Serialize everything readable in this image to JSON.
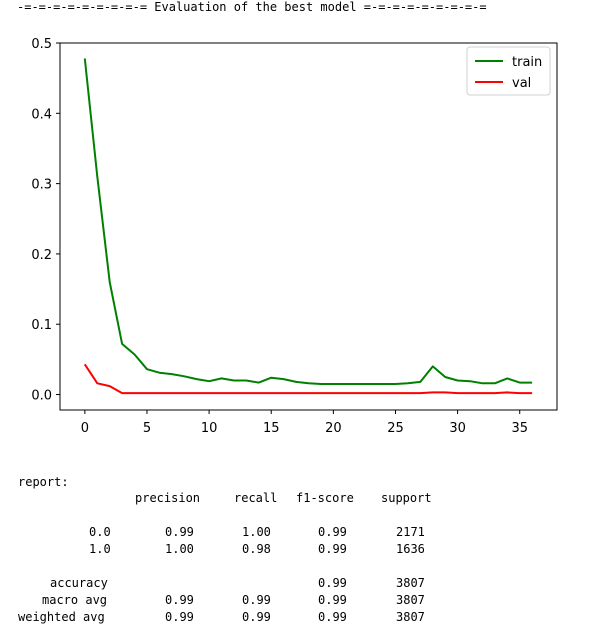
{
  "header": {
    "text": "-=-=-=-=-=-=-=-=-= Evaluation of the best model =-=-=-=-=-=-=-=-="
  },
  "chart_data": {
    "type": "line",
    "xlabel": "",
    "ylabel": "",
    "xlim": [
      -2,
      38
    ],
    "ylim": [
      -0.022,
      0.5
    ],
    "xticks": [
      0,
      5,
      10,
      15,
      20,
      25,
      30,
      35
    ],
    "yticks": [
      0.0,
      0.1,
      0.2,
      0.3,
      0.4,
      0.5
    ],
    "legend_position": "top-right",
    "grid": false,
    "x": [
      0,
      1,
      2,
      3,
      4,
      5,
      6,
      7,
      8,
      9,
      10,
      11,
      12,
      13,
      14,
      15,
      16,
      17,
      18,
      19,
      20,
      21,
      22,
      23,
      24,
      25,
      26,
      27,
      28,
      29,
      30,
      31,
      32,
      33,
      34,
      35,
      36
    ],
    "series": [
      {
        "name": "train",
        "color": "#008000",
        "values": [
          0.478,
          0.31,
          0.16,
          0.072,
          0.057,
          0.036,
          0.031,
          0.029,
          0.026,
          0.022,
          0.019,
          0.023,
          0.02,
          0.02,
          0.017,
          0.024,
          0.022,
          0.018,
          0.016,
          0.015,
          0.015,
          0.015,
          0.015,
          0.015,
          0.015,
          0.015,
          0.016,
          0.018,
          0.04,
          0.025,
          0.02,
          0.019,
          0.016,
          0.016,
          0.023,
          0.017,
          0.017
        ]
      },
      {
        "name": "val",
        "color": "#ff0000",
        "values": [
          0.043,
          0.016,
          0.012,
          0.002,
          0.002,
          0.002,
          0.002,
          0.002,
          0.002,
          0.002,
          0.002,
          0.002,
          0.002,
          0.002,
          0.002,
          0.002,
          0.002,
          0.002,
          0.002,
          0.002,
          0.002,
          0.002,
          0.002,
          0.002,
          0.002,
          0.002,
          0.002,
          0.002,
          0.003,
          0.003,
          0.002,
          0.002,
          0.002,
          0.002,
          0.003,
          0.002,
          0.002
        ]
      }
    ]
  },
  "report": {
    "label": "report:",
    "columns": [
      "precision",
      "recall",
      "f1-score",
      "support"
    ],
    "rows": [
      {
        "label": "0.0",
        "precision": "0.99",
        "recall": "1.00",
        "f1": "0.99",
        "support": "2171"
      },
      {
        "label": "1.0",
        "precision": "1.00",
        "recall": "0.98",
        "f1": "0.99",
        "support": "1636"
      },
      {
        "label": "accuracy",
        "precision": "",
        "recall": "",
        "f1": "0.99",
        "support": "3807"
      },
      {
        "label": "macro avg",
        "precision": "0.99",
        "recall": "0.99",
        "f1": "0.99",
        "support": "3807"
      },
      {
        "label": "weighted avg",
        "precision": "0.99",
        "recall": "0.99",
        "f1": "0.99",
        "support": "3807"
      }
    ]
  }
}
